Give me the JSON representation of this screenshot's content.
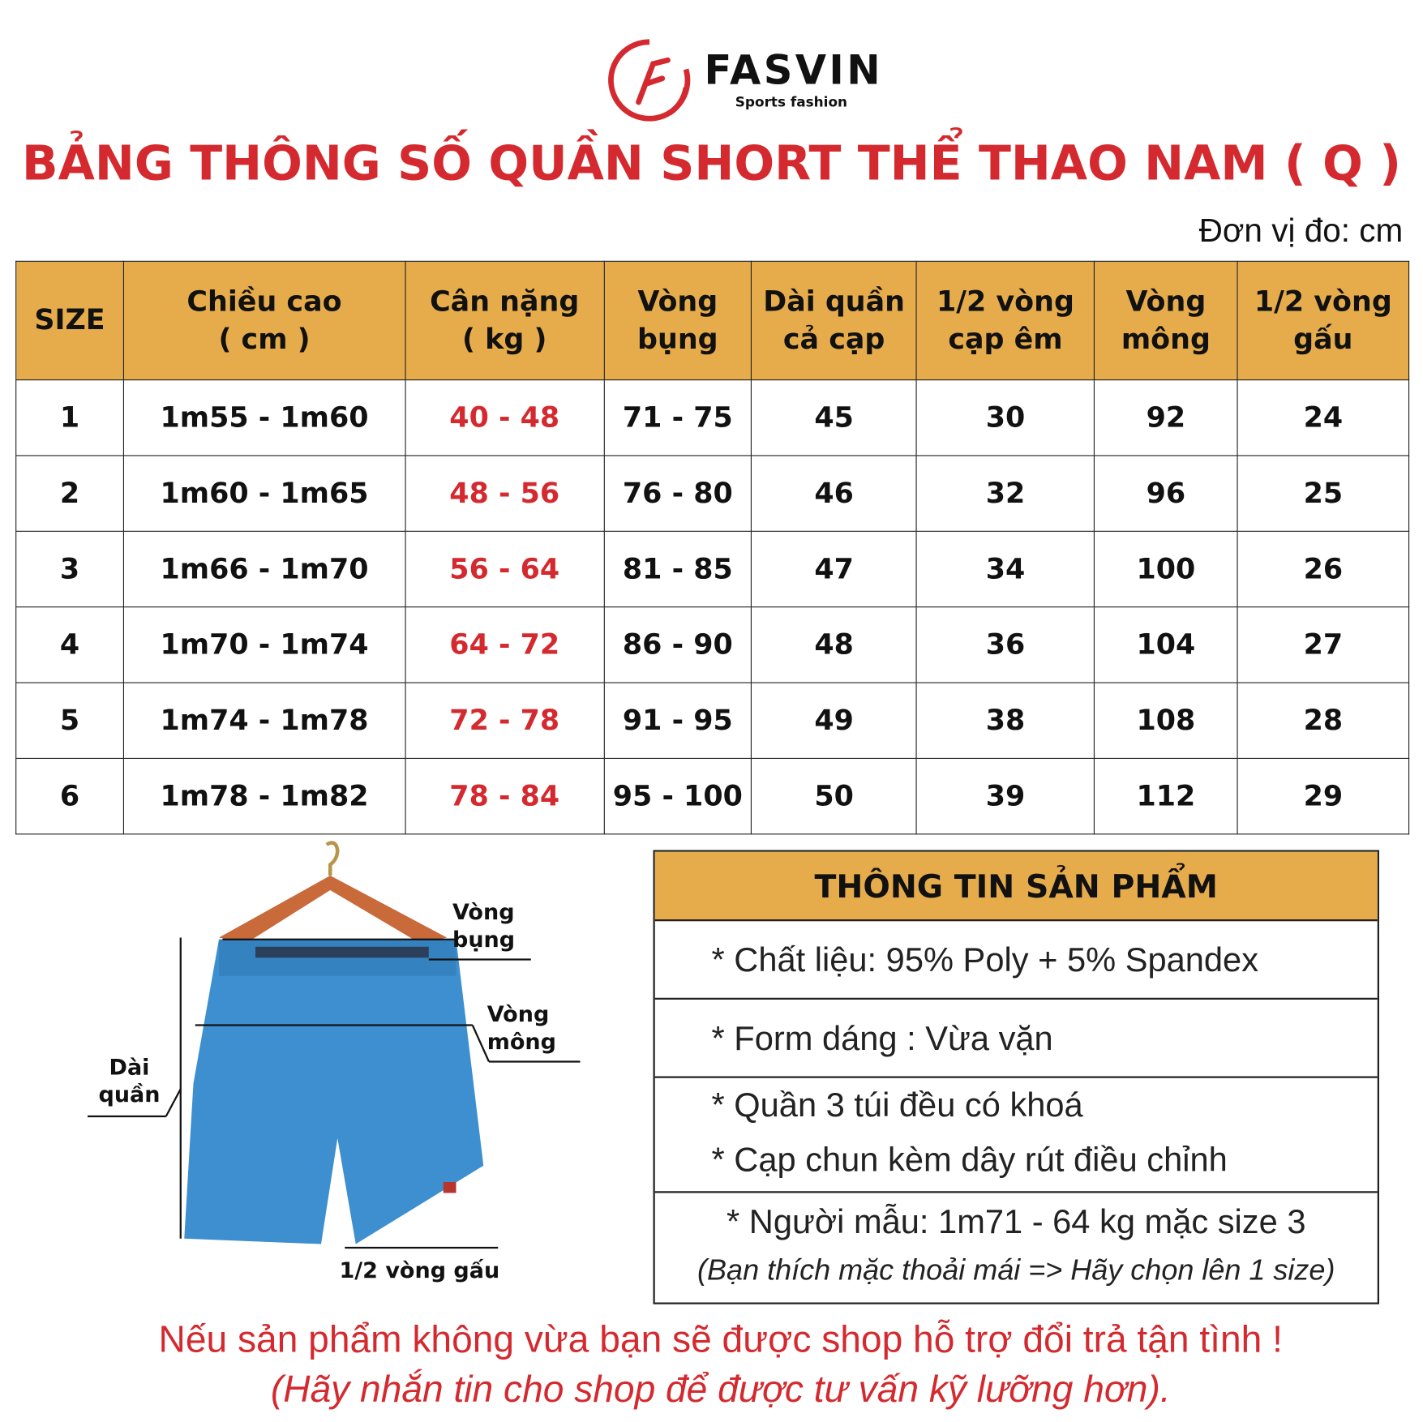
{
  "brand": {
    "name": "FASVIN",
    "tagline": "Sports fashion",
    "color": "#d42a2f"
  },
  "title": "BẢNG THÔNG SỐ QUẦN SHORT THỂ THAO NAM ( Q )",
  "unit": "Đơn vị đo: cm",
  "table": {
    "header_color": "#e6ac4c",
    "headers": [
      [
        "SIZE",
        ""
      ],
      [
        "Chiều cao",
        "( cm )"
      ],
      [
        "Cân nặng",
        "( kg )"
      ],
      [
        "Vòng",
        "bụng"
      ],
      [
        "Dài quần",
        "cả cạp"
      ],
      [
        "1/2 vòng",
        "cạp êm"
      ],
      [
        "Vòng",
        "mông"
      ],
      [
        "1/2 vòng",
        "gấu"
      ]
    ],
    "rows": [
      [
        "1",
        "1m55 - 1m60",
        "40 - 48",
        "71 - 75",
        "45",
        "30",
        "92",
        "24"
      ],
      [
        "2",
        "1m60 - 1m65",
        "48 - 56",
        "76 - 80",
        "46",
        "32",
        "96",
        "25"
      ],
      [
        "3",
        "1m66 - 1m70",
        "56 - 64",
        "81 - 85",
        "47",
        "34",
        "100",
        "26"
      ],
      [
        "4",
        "1m70 - 1m74",
        "64 - 72",
        "86 - 90",
        "48",
        "36",
        "104",
        "27"
      ],
      [
        "5",
        "1m74 - 1m78",
        "72 - 78",
        "91 - 95",
        "49",
        "38",
        "108",
        "28"
      ],
      [
        "6",
        "1m78 - 1m82",
        "78 - 84",
        "95 - 100",
        "50",
        "39",
        "112",
        "29"
      ]
    ]
  },
  "diagram": {
    "waist": [
      "Vòng",
      "bụng"
    ],
    "hip": [
      "Vòng",
      "mông"
    ],
    "length": [
      "Dài",
      "quần"
    ],
    "hem": "1/2 vòng gấu",
    "shorts_color": "#3d8fd0"
  },
  "info": {
    "title": "THÔNG TIN SẢN PHẨM",
    "material": "* Chất liệu: 95% Poly + 5% Spandex",
    "form": "* Form dáng : Vừa vặn",
    "pockets": "* Quần 3 túi đều có khoá",
    "waistband": "* Cạp chun kèm dây rút điều chỉnh",
    "model": "* Người mẫu: 1m71 - 64 kg mặc size 3",
    "tip": "(Bạn thích mặc thoải mái => Hãy chọn lên 1 size)"
  },
  "footer": {
    "line1": "Nếu sản phẩm không vừa bạn sẽ được shop hỗ trợ đổi trả tận tình !",
    "line2": "(Hãy nhắn tin cho shop để được tư vấn kỹ lưỡng hơn)."
  }
}
